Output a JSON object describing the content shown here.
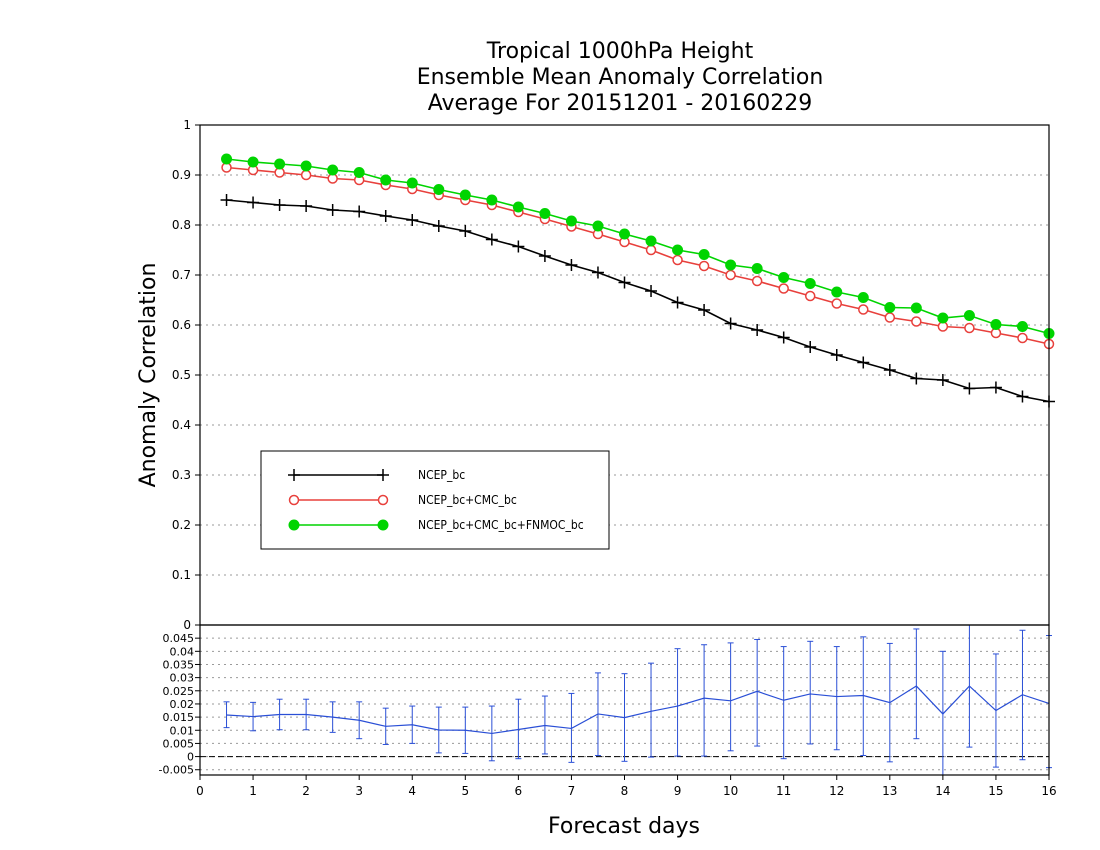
{
  "chart_data": [
    {
      "type": "line",
      "title_lines": [
        "Tropical 1000hPa Height",
        "Ensemble Mean Anomaly Correlation",
        "Average For 20151201 - 20160229"
      ],
      "xlabel": "Forecast days",
      "ylabel": "Anomaly Correlation",
      "xlim": [
        0,
        16
      ],
      "ylim": [
        0,
        1
      ],
      "x_ticks": [
        "0",
        "1",
        "2",
        "3",
        "4",
        "5",
        "6",
        "7",
        "8",
        "9",
        "10",
        "11",
        "12",
        "13",
        "14",
        "15",
        "16"
      ],
      "y_ticks": [
        "0",
        "0.1",
        "0.2",
        "0.3",
        "0.4",
        "0.5",
        "0.6",
        "0.7",
        "0.8",
        "0.9",
        "1"
      ],
      "grid": true,
      "legend_position": "left-middle",
      "x": [
        0.5,
        1,
        1.5,
        2,
        2.5,
        3,
        3.5,
        4,
        4.5,
        5,
        5.5,
        6,
        6.5,
        7,
        7.5,
        8,
        8.5,
        9,
        9.5,
        10,
        10.5,
        11,
        11.5,
        12,
        12.5,
        13,
        13.5,
        14,
        14.5,
        15,
        15.5,
        16
      ],
      "series": [
        {
          "name": "NCEP_bc",
          "color": "#000000",
          "marker": "plus",
          "values": [
            0.85,
            0.845,
            0.84,
            0.838,
            0.83,
            0.827,
            0.818,
            0.81,
            0.798,
            0.788,
            0.771,
            0.757,
            0.738,
            0.72,
            0.705,
            0.685,
            0.668,
            0.645,
            0.63,
            0.603,
            0.59,
            0.575,
            0.556,
            0.54,
            0.525,
            0.51,
            0.493,
            0.49,
            0.473,
            0.475,
            0.457,
            0.447
          ]
        },
        {
          "name": "NCEP_bc+CMC_bc",
          "color": "#e8403c",
          "marker": "open-circle",
          "values": [
            0.915,
            0.91,
            0.905,
            0.9,
            0.893,
            0.89,
            0.88,
            0.872,
            0.86,
            0.85,
            0.84,
            0.826,
            0.812,
            0.797,
            0.782,
            0.766,
            0.75,
            0.73,
            0.718,
            0.7,
            0.688,
            0.673,
            0.658,
            0.643,
            0.631,
            0.615,
            0.607,
            0.597,
            0.594,
            0.584,
            0.574,
            0.562
          ]
        },
        {
          "name": "NCEP_bc+CMC_bc+FNMOC_bc",
          "color": "#00d400",
          "marker": "filled-circle",
          "values": [
            0.932,
            0.926,
            0.922,
            0.918,
            0.91,
            0.905,
            0.89,
            0.884,
            0.871,
            0.86,
            0.85,
            0.836,
            0.823,
            0.808,
            0.798,
            0.782,
            0.768,
            0.75,
            0.741,
            0.72,
            0.713,
            0.695,
            0.683,
            0.666,
            0.655,
            0.635,
            0.634,
            0.614,
            0.619,
            0.601,
            0.597,
            0.583
          ]
        }
      ]
    },
    {
      "type": "line",
      "xlim": [
        0,
        16
      ],
      "ylim": [
        -0.007,
        0.05
      ],
      "y_ticks": [
        "-0.005",
        "0",
        "0.005",
        "0.01",
        "0.015",
        "0.02",
        "0.025",
        "0.03",
        "0.035",
        "0.04",
        "0.045"
      ],
      "grid": true,
      "x": [
        0.5,
        1,
        1.5,
        2,
        2.5,
        3,
        3.5,
        4,
        4.5,
        5,
        5.5,
        6,
        6.5,
        7,
        7.5,
        8,
        8.5,
        9,
        9.5,
        10,
        10.5,
        11,
        11.5,
        12,
        12.5,
        13,
        13.5,
        14,
        14.5,
        15,
        15.5,
        16
      ],
      "series": [
        {
          "color": "#2a4fd6",
          "marker": "errorbar",
          "values": [
            0.0158,
            0.0152,
            0.016,
            0.016,
            0.015,
            0.0138,
            0.0115,
            0.0121,
            0.0101,
            0.01,
            0.0088,
            0.0103,
            0.0118,
            0.0107,
            0.0162,
            0.0148,
            0.0172,
            0.0192,
            0.0222,
            0.0212,
            0.0248,
            0.0214,
            0.0238,
            0.0228,
            0.0232,
            0.0205,
            0.0268,
            0.0162,
            0.0268,
            0.0175,
            0.0235,
            0.0202
          ],
          "error_low": [
            0.011,
            0.0098,
            0.0102,
            0.0102,
            0.0092,
            0.0068,
            0.0046,
            0.005,
            0.0014,
            0.0012,
            -0.0016,
            -0.0008,
            0.001,
            -0.0022,
            0.0004,
            -0.0018,
            -0.0002,
            0.0002,
            0.0002,
            0.0022,
            0.004,
            -0.0008,
            0.0048,
            0.0026,
            0.0004,
            -0.002,
            0.0068,
            -0.007,
            0.0036,
            -0.004,
            -0.0012,
            -0.0042
          ],
          "error_high": [
            0.0208,
            0.0206,
            0.0218,
            0.0218,
            0.0208,
            0.0208,
            0.0184,
            0.0192,
            0.0188,
            0.0188,
            0.0192,
            0.0218,
            0.023,
            0.024,
            0.0318,
            0.0315,
            0.0355,
            0.041,
            0.0425,
            0.0432,
            0.0445,
            0.0418,
            0.0438,
            0.0418,
            0.0455,
            0.043,
            0.0485,
            0.04,
            0.05,
            0.039,
            0.048,
            0.046
          ]
        }
      ],
      "reference_line": 0
    }
  ]
}
